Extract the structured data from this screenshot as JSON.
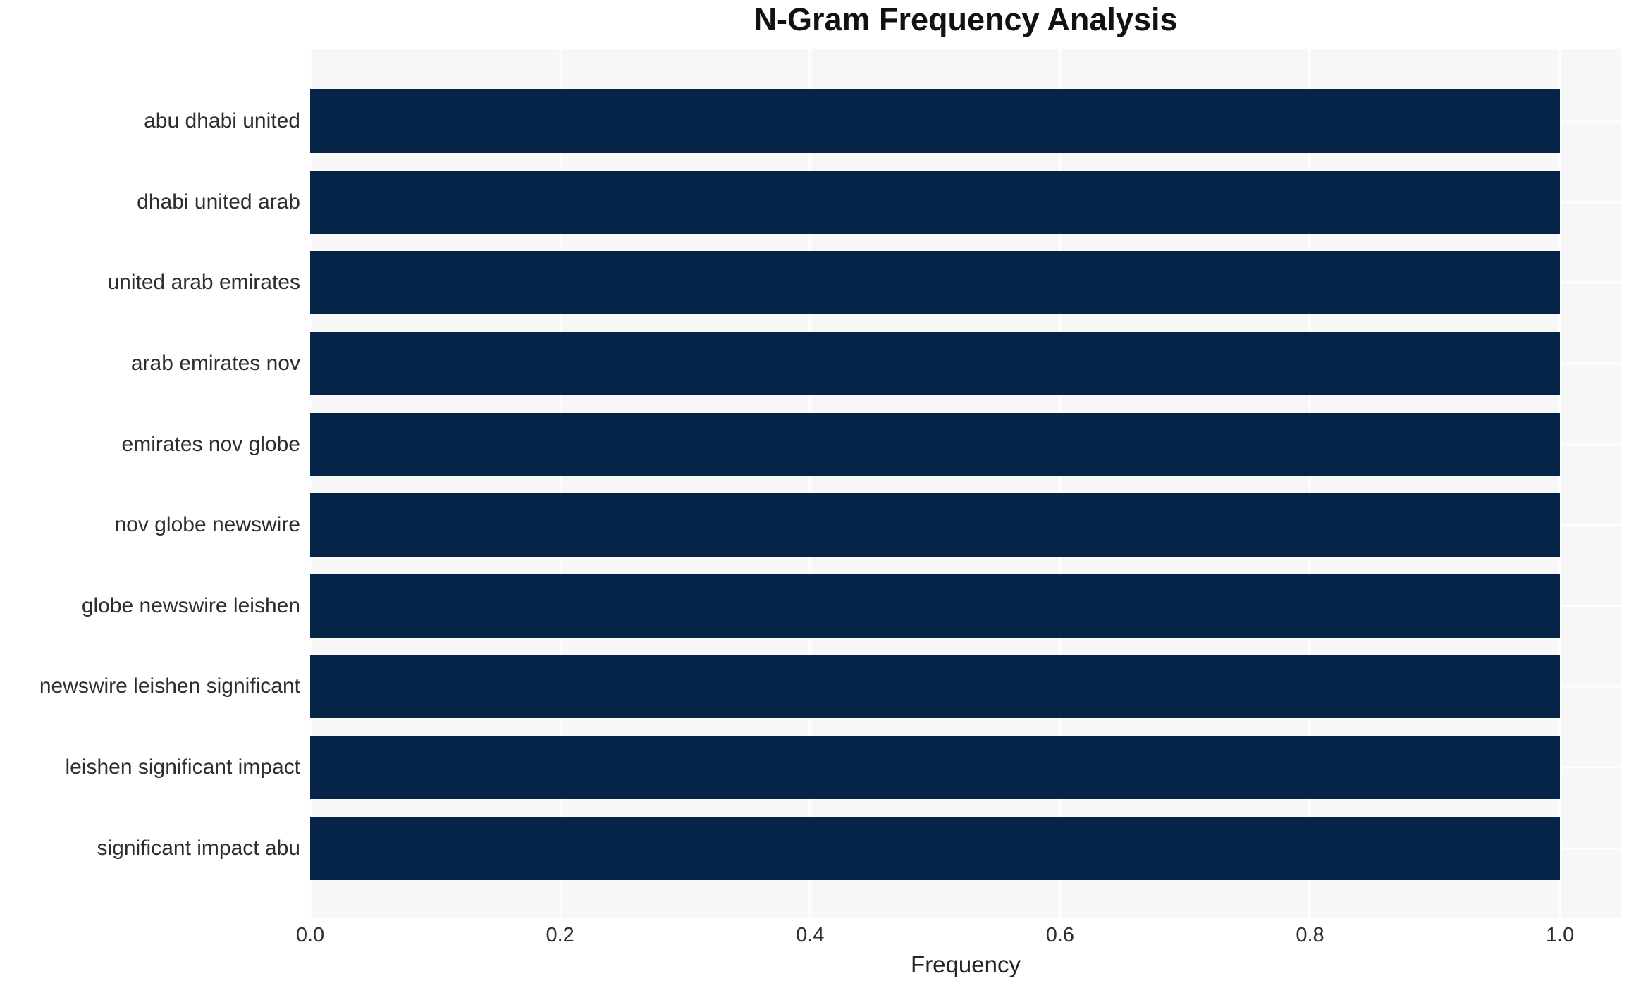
{
  "chart_data": {
    "type": "bar",
    "orientation": "horizontal",
    "title": "N-Gram Frequency Analysis",
    "xlabel": "Frequency",
    "ylabel": "",
    "categories": [
      "abu dhabi united",
      "dhabi united arab",
      "united arab emirates",
      "arab emirates nov",
      "emirates nov globe",
      "nov globe newswire",
      "globe newswire leishen",
      "newswire leishen significant",
      "leishen significant impact",
      "significant impact abu"
    ],
    "values": [
      1.0,
      1.0,
      1.0,
      1.0,
      1.0,
      1.0,
      1.0,
      1.0,
      1.0,
      1.0
    ],
    "x_ticks": [
      "0.0",
      "0.2",
      "0.4",
      "0.6",
      "0.8",
      "1.0"
    ],
    "xlim": [
      0.0,
      1.049
    ],
    "grid": true,
    "legend": false,
    "colors": {
      "bar": "#062447",
      "plot_background": "#f7f7f8",
      "gridline": "#ffffff",
      "figure_background": "#ffffff",
      "title_text": "#121212",
      "tick_text": "#2e2e2e"
    }
  }
}
